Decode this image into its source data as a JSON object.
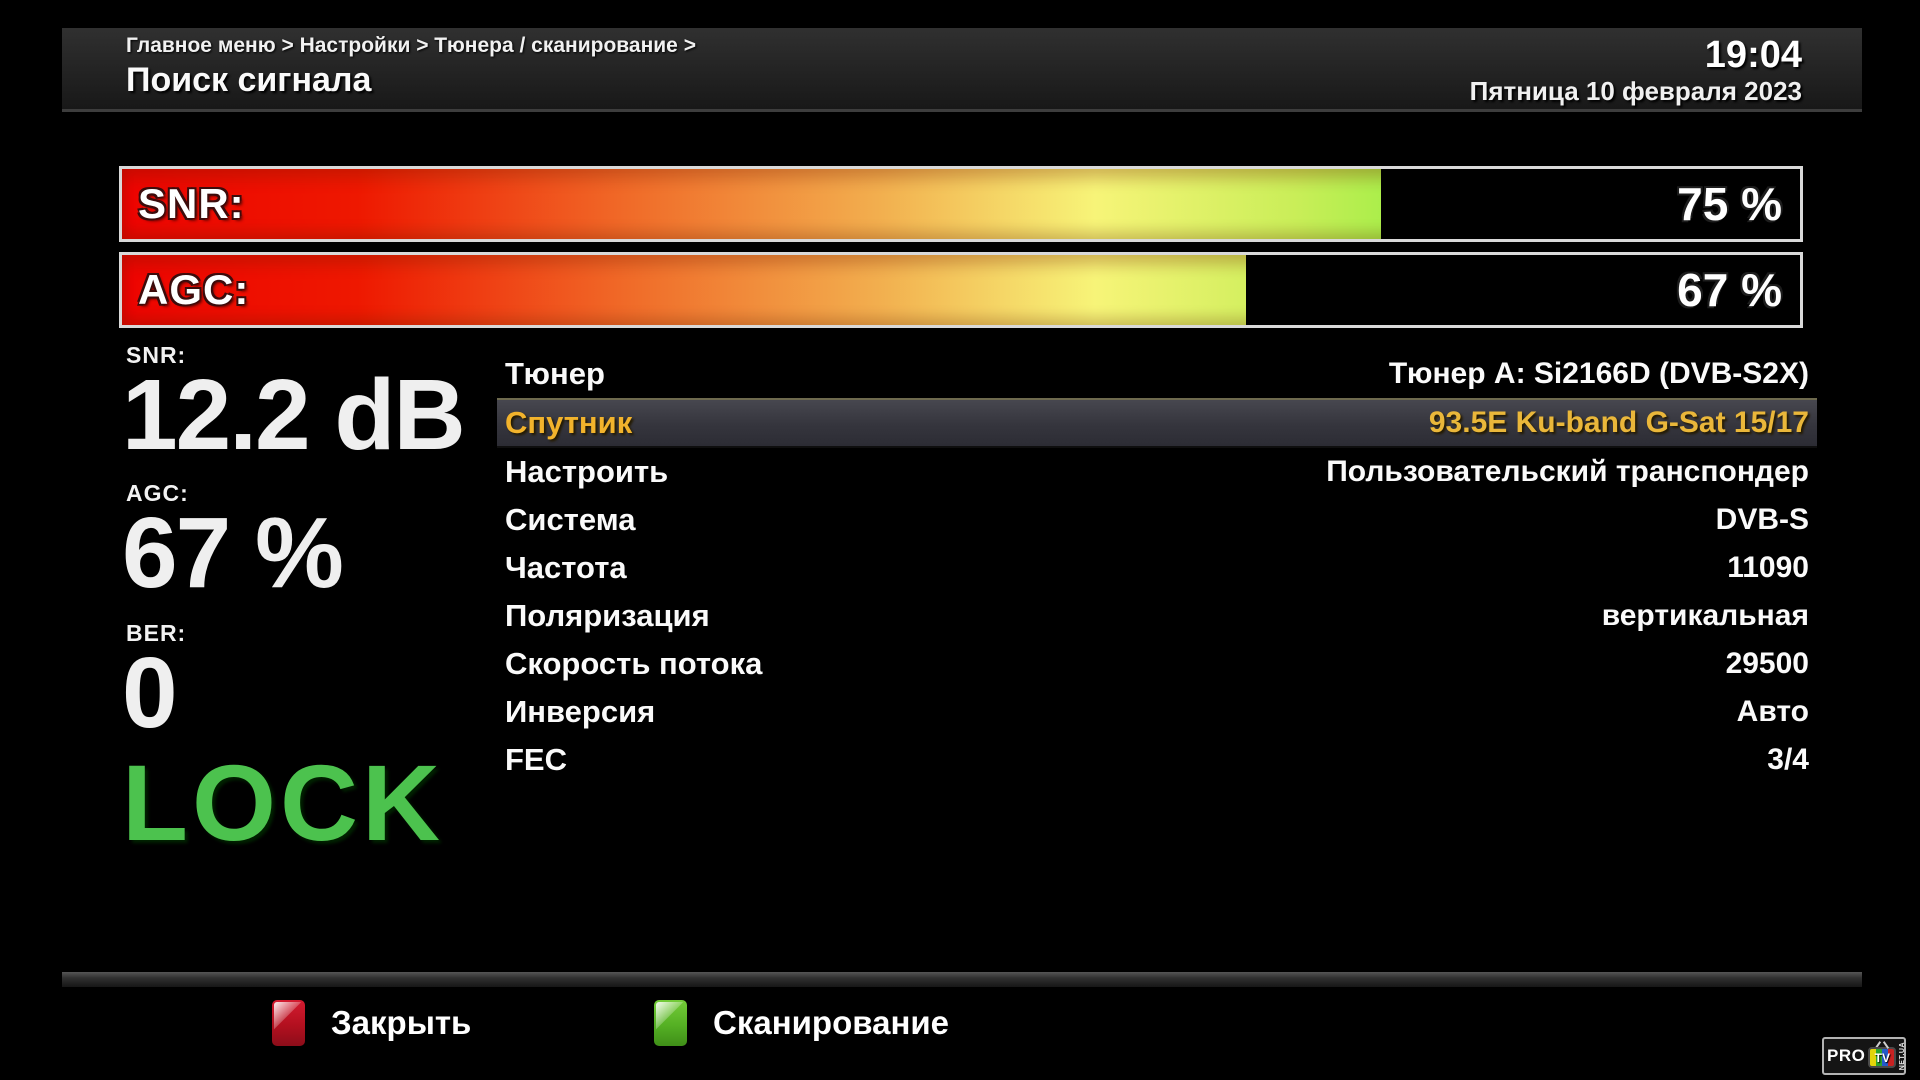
{
  "header": {
    "breadcrumb": "Главное меню > Настройки > Тюнера / сканирование >",
    "title": "Поиск сигнала",
    "time": "19:04",
    "date": "Пятница 10 февраля 2023"
  },
  "signal_bars": [
    {
      "label": "SNR:",
      "value": "75 %",
      "percent": 75
    },
    {
      "label": "AGC:",
      "value": "67 %",
      "percent": 67
    }
  ],
  "metrics": [
    {
      "label": "SNR:",
      "value": "12.2 dB"
    },
    {
      "label": "AGC:",
      "value": "67 %"
    },
    {
      "label": "BER:",
      "value": "0"
    }
  ],
  "lock_status": "LOCK",
  "settings": {
    "rows": [
      {
        "label": "Тюнер",
        "value": "Тюнер A: Si2166D (DVB-S2X)",
        "selected": false
      },
      {
        "label": "Спутник",
        "value": "93.5E Ku-band G-Sat 15/17",
        "selected": true
      },
      {
        "label": "Настроить",
        "value": "Пользовательский транспондер",
        "selected": false
      },
      {
        "label": "Система",
        "value": "DVB-S",
        "selected": false
      },
      {
        "label": "Частота",
        "value": "11090",
        "selected": false
      },
      {
        "label": "Поляризация",
        "value": "вертикальная",
        "selected": false
      },
      {
        "label": "Скорость потока",
        "value": "29500",
        "selected": false
      },
      {
        "label": "Инверсия",
        "value": "Авто",
        "selected": false
      },
      {
        "label": "FEC",
        "value": "3/4",
        "selected": false
      }
    ]
  },
  "footer": {
    "buttons": [
      {
        "color_key": "red",
        "label": "Закрыть"
      },
      {
        "color_key": "green",
        "label": "Сканирование"
      }
    ]
  },
  "logo": {
    "pro": "PRO",
    "tv": "TV",
    "net": "NET.UA"
  },
  "colors": {
    "lock_green": "#4cc24e",
    "selected_gold": "#eab73a",
    "bar_gradient_start": "#ee0400",
    "bar_gradient_mid": "#f7f478",
    "bar_gradient_end": "#55dd12",
    "key_red": "#b3101f",
    "key_green": "#55b024"
  }
}
